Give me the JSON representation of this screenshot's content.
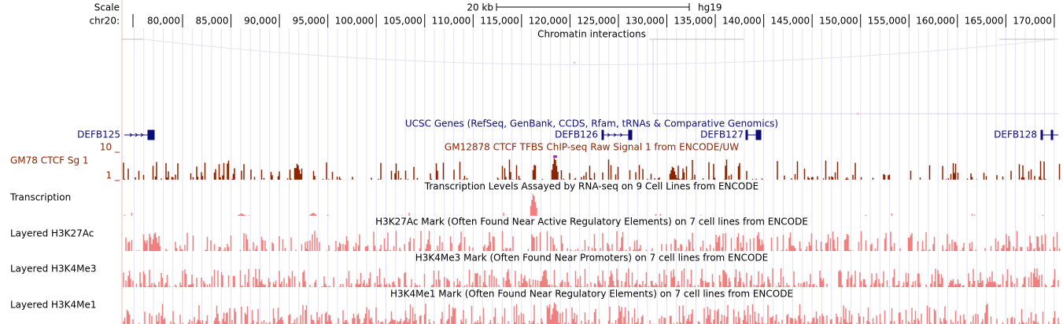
{
  "ruler": {
    "scale_label": "Scale",
    "scale_bar": "20 kb",
    "assembly": "hg19",
    "chrom": "chr20:",
    "positions": [
      "80,000",
      "85,000",
      "90,000",
      "95,000",
      "100,000",
      "105,000",
      "110,000",
      "115,000",
      "120,000",
      "125,000",
      "130,000",
      "135,000",
      "140,000",
      "145,000",
      "150,000",
      "155,000",
      "160,000",
      "165,000",
      "170,000"
    ]
  },
  "tracks": {
    "chromatin": {
      "title": "Chromatin interactions"
    },
    "genes": {
      "title": "UCSC Genes (RefSeq, GenBank, CCDS, Rfam, tRNAs & Comparative Genomics)",
      "names": [
        "DEFB125",
        "DEFB126",
        "DEFB127",
        "DEFB128"
      ]
    },
    "ctcf": {
      "label": "GM78 CTCF Sg 1",
      "max_label": "10 _",
      "min_label": "1 _",
      "title": "GM12878 CTCF TFBS ChIP-seq Raw Signal 1 from ENCODE/UW"
    },
    "transcription": {
      "label": "Transcription",
      "title": "Transcription Levels Assayed by RNA-seq on 9 Cell Lines from ENCODE"
    },
    "h3k27ac": {
      "label": "Layered H3K27Ac",
      "title": "H3K27Ac Mark (Often Found Near Active Regulatory Elements) on 7 cell lines from ENCODE"
    },
    "h3k4me3": {
      "label": "Layered H3K4Me3",
      "title": "H3K4Me3 Mark (Often Found Near Promoters) on 7 cell lines from ENCODE"
    },
    "h3k4me1": {
      "label": "Layered H3K4Me1",
      "title": "H3K4Me1 Mark (Often Found Near Regulatory Elements) on 7 cell lines from ENCODE"
    }
  }
}
